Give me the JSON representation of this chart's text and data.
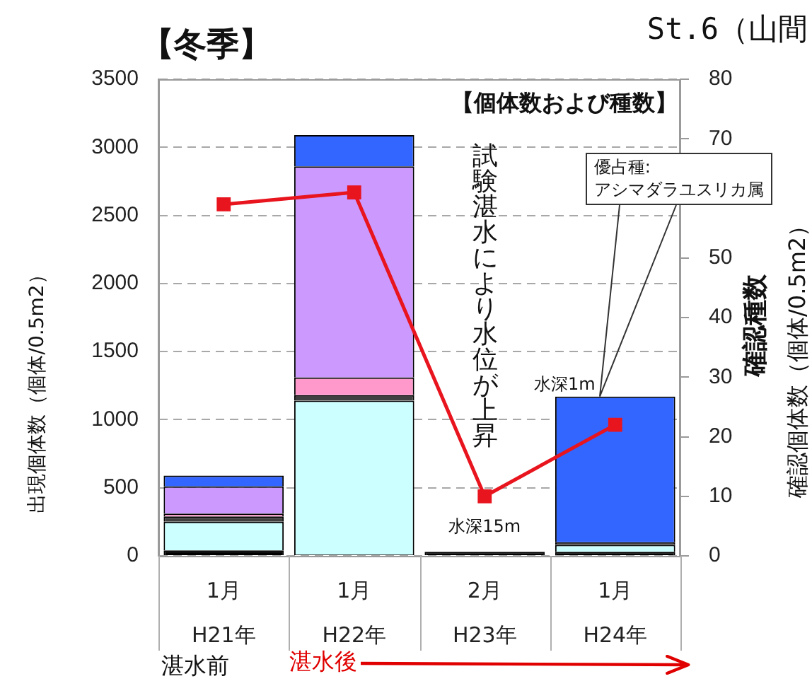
{
  "chart_data": {
    "type": "bar",
    "title": "【冬季】",
    "subtitle": "St.6（山間",
    "ylabel": "出現個体数（個体/0.5m2）",
    "y2label": "確認種数",
    "categories": [
      "1月\nH21年",
      "1月\nH22年",
      "2月\nH23年",
      "1月\nH24年"
    ],
    "stacked": true,
    "series": [
      {
        "color": "#000000",
        "values": [
          40,
          10,
          30,
          30
        ]
      },
      {
        "color": "#ccffff",
        "values": [
          210,
          1130,
          0,
          50
        ]
      },
      {
        "color": "#404040",
        "values": [
          40,
          40,
          0,
          20
        ]
      },
      {
        "color": "#ff99cc",
        "values": [
          20,
          130,
          0,
          0
        ]
      },
      {
        "color": "#cc99ff",
        "values": [
          200,
          1550,
          0,
          0
        ]
      },
      {
        "color": "#3366ff",
        "values": [
          80,
          230,
          0,
          1070
        ]
      },
      {
        "type": "line",
        "axis": "y2",
        "color": "#e8141e",
        "values": [
          59,
          61,
          10,
          22
        ]
      }
    ],
    "ylim": [
      0,
      3500
    ],
    "yticks": [
      0,
      500,
      1000,
      1500,
      2000,
      2500,
      3000,
      3500
    ],
    "y2lim": [
      0,
      80
    ],
    "y2ticks": [
      0,
      10,
      20,
      30,
      40,
      50,
      70,
      80
    ],
    "grid": "y",
    "marker": "square",
    "annotations": [
      "【個体数および種数】",
      "試験湛水により水位が上昇",
      "優占種:\nアシマダラユスリカ属",
      {
        "text": "水深15m",
        "x": "2月\nH23年",
        "y": 30
      },
      {
        "text": "水深1m",
        "x": "1月\nH24年",
        "y": 1170
      },
      "湛水前",
      "湛水後",
      "確認個体数（個体/0.5m2）"
    ]
  }
}
